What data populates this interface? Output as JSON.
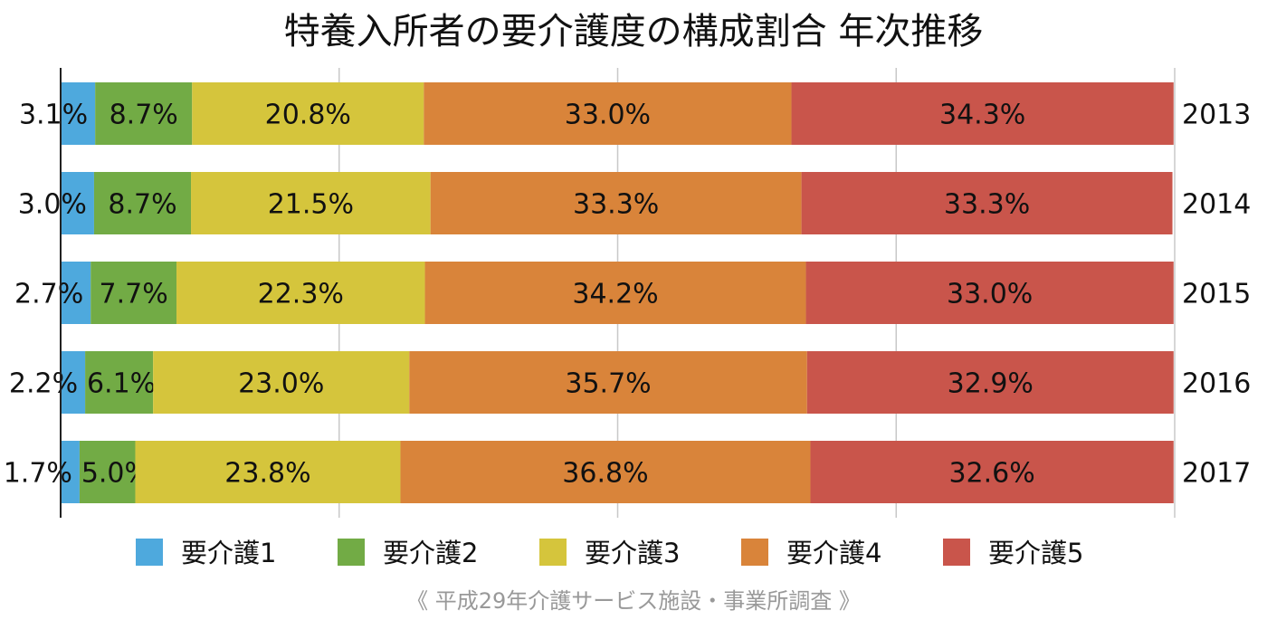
{
  "chart_data": {
    "type": "bar",
    "orientation": "horizontal",
    "stacked": true,
    "title": "特養入所者の要介護度の構成割合 年次推移",
    "categories": [
      "2013",
      "2014",
      "2015",
      "2016",
      "2017"
    ],
    "series": [
      {
        "name": "要介護1",
        "color": "#4ea9dd",
        "values": [
          3.1,
          3.0,
          2.7,
          2.2,
          1.7
        ],
        "labels": [
          "3.1%",
          "3.0%",
          "2.7%",
          "2.2%",
          "1.7%"
        ]
      },
      {
        "name": "要介護2",
        "color": "#72ab45",
        "values": [
          8.7,
          8.7,
          7.7,
          6.1,
          5.0
        ],
        "labels": [
          "8.7%",
          "8.7%",
          "7.7%",
          "6.1%",
          "5.0%"
        ]
      },
      {
        "name": "要介護3",
        "color": "#d5c53c",
        "values": [
          20.8,
          21.5,
          22.3,
          23.0,
          23.8
        ],
        "labels": [
          "20.8%",
          "21.5%",
          "22.3%",
          "23.0%",
          "23.8%"
        ]
      },
      {
        "name": "要介護4",
        "color": "#d9843a",
        "values": [
          33.0,
          33.3,
          34.2,
          35.7,
          36.8
        ],
        "labels": [
          "33.0%",
          "33.3%",
          "34.2%",
          "35.7%",
          "36.8%"
        ]
      },
      {
        "name": "要介護5",
        "color": "#c9554b",
        "values": [
          34.3,
          33.3,
          33.0,
          32.9,
          32.6
        ],
        "labels": [
          "34.3%",
          "33.3%",
          "33.0%",
          "32.9%",
          "32.6%"
        ]
      }
    ],
    "xlim": [
      0,
      100
    ],
    "grid": true,
    "legend_position": "bottom"
  },
  "source": "《 平成29年介護サービス施設・事業所調査 》"
}
